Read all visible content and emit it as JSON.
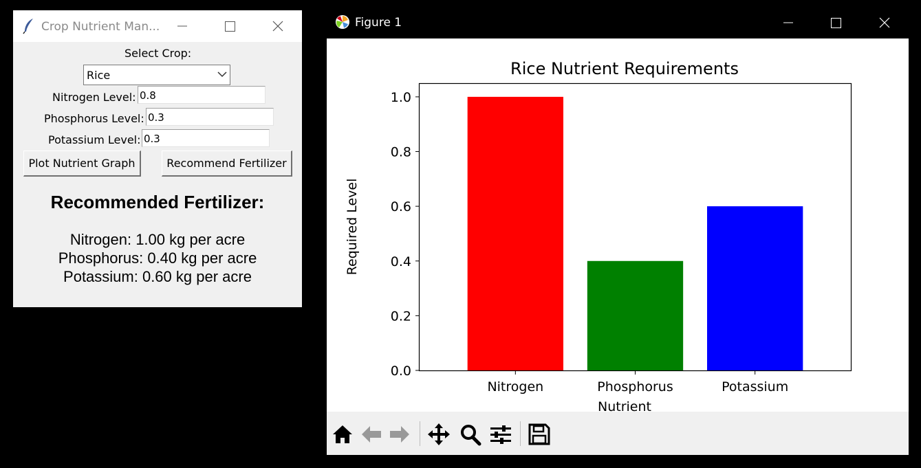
{
  "tk_window": {
    "title": "Crop Nutrient Man...",
    "select_crop_label": "Select Crop:",
    "selected_crop": "Rice",
    "nitrogen_label": "Nitrogen Level:",
    "nitrogen_value": "0.8",
    "phosphorus_label": "Phosphorus Level:",
    "phosphorus_value": "0.3",
    "potassium_label": "Potassium Level:",
    "potassium_value": "0.3",
    "plot_button": "Plot Nutrient Graph",
    "recommend_button": "Recommend Fertilizer",
    "recommendation": {
      "heading": "Recommended Fertilizer:",
      "lines": [
        "Nitrogen: 1.00 kg per acre",
        "Phosphorus: 0.40 kg per acre",
        "Potassium: 0.60 kg per acre"
      ]
    }
  },
  "figure_window": {
    "title": "Figure 1",
    "toolbar": [
      "home-icon",
      "back-arrow-icon",
      "forward-arrow-icon",
      "pan-icon",
      "zoom-icon",
      "configure-subplots-icon",
      "save-icon"
    ]
  },
  "chart_data": {
    "type": "bar",
    "title": "Rice Nutrient Requirements",
    "xlabel": "Nutrient",
    "ylabel": "Required Level",
    "categories": [
      "Nitrogen",
      "Phosphorus",
      "Potassium"
    ],
    "values": [
      1.0,
      0.4,
      0.6
    ],
    "colors": [
      "#ff0000",
      "#008000",
      "#0000ff"
    ],
    "ylim": [
      0,
      1.05
    ],
    "yticks": [
      "0.0",
      "0.2",
      "0.4",
      "0.6",
      "0.8",
      "1.0"
    ],
    "grid": false
  }
}
